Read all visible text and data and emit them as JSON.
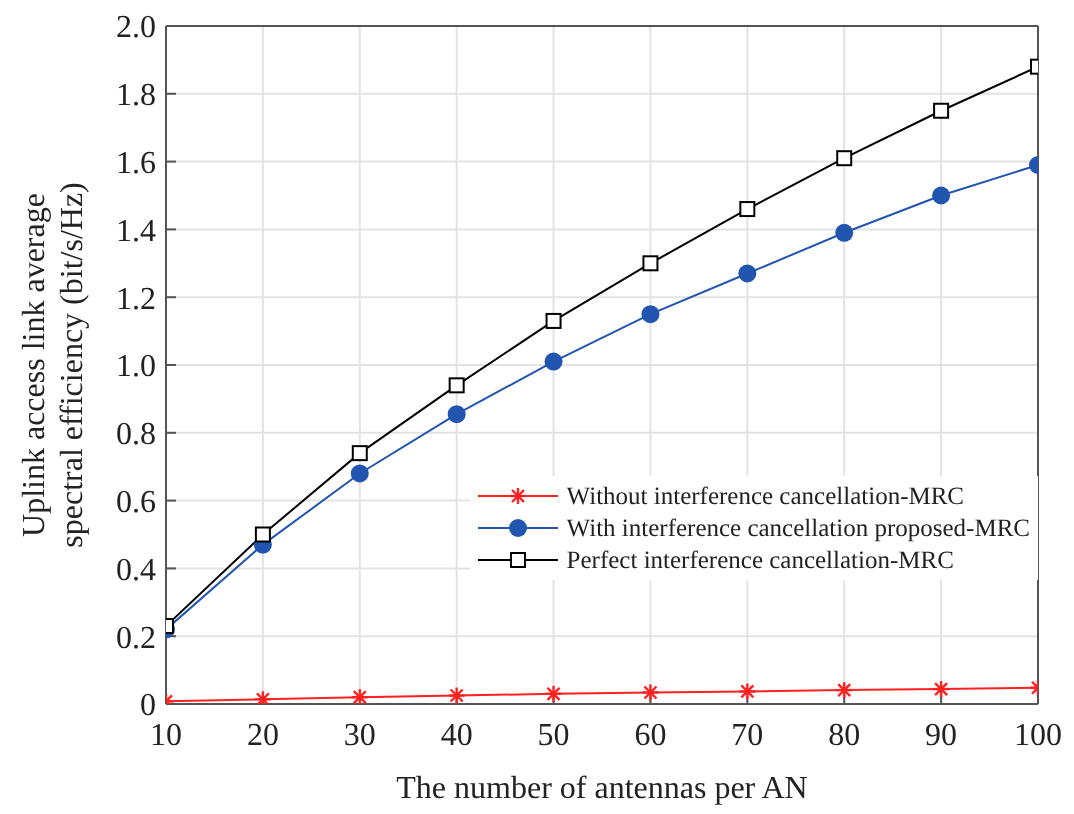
{
  "chart_data": {
    "type": "line",
    "xlabel": "The number of antennas per AN",
    "ylabel": "Uplink access link average spectral efficiency (bit/s/Hz)",
    "x": [
      10,
      20,
      30,
      40,
      50,
      60,
      70,
      80,
      90,
      100
    ],
    "series": [
      {
        "name": "Without interference cancellation-MRC",
        "color": "#ff2020",
        "marker": "cross",
        "values": [
          0.008,
          0.014,
          0.02,
          0.025,
          0.03,
          0.034,
          0.037,
          0.041,
          0.044,
          0.048
        ]
      },
      {
        "name": "With interference cancellation proposed-MRC",
        "color": "#2255b0",
        "marker": "circle",
        "values": [
          0.22,
          0.47,
          0.68,
          0.855,
          1.01,
          1.15,
          1.27,
          1.39,
          1.5,
          1.59
        ]
      },
      {
        "name": "Perfect interference cancellation-MRC",
        "color": "#000000",
        "marker": "square",
        "values": [
          0.23,
          0.5,
          0.74,
          0.94,
          1.13,
          1.3,
          1.46,
          1.61,
          1.75,
          1.88
        ]
      }
    ],
    "xlim": [
      10,
      100
    ],
    "xticks": [
      10,
      20,
      30,
      40,
      50,
      60,
      70,
      80,
      90,
      100
    ],
    "ylim": [
      0,
      2
    ],
    "yticks": [
      0,
      0.2,
      0.4,
      0.6,
      0.8,
      {
        "value": 1,
        "label": "1.0"
      },
      1.2,
      1.4,
      1.6,
      1.8,
      {
        "value": 2,
        "label": "2.0"
      }
    ],
    "grid": true,
    "legend": "right",
    "line_style": "solid"
  }
}
